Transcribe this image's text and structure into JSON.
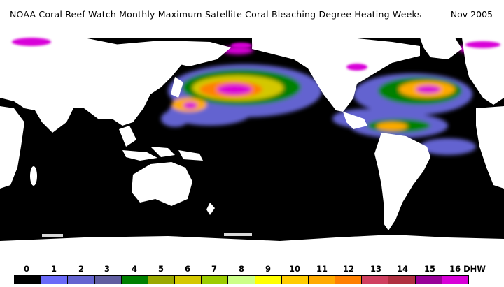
{
  "header": {
    "title": "NOAA  Coral  Reef  Watch  Monthly  Maximum  Satellite  Coral  Bleaching  Degree  Heating  Weeks",
    "date": "Nov 2005"
  },
  "legend": {
    "labels": [
      "0",
      "1",
      "2",
      "3",
      "4",
      "5",
      "6",
      "7",
      "8",
      "9",
      "10",
      "11",
      "12",
      "13",
      "14",
      "15",
      "16 DHW"
    ],
    "colors": [
      "#000000",
      "#6a6af8",
      "#6464d0",
      "#605ea0",
      "#008000",
      "#9aa800",
      "#d4c800",
      "#9ccc00",
      "#ccff88",
      "#ffff00",
      "#ffcc00",
      "#ffaa00",
      "#ff8000",
      "#d04060",
      "#b03040",
      "#980098",
      "#d800d8"
    ]
  },
  "colors": {
    "ocean": "#000000",
    "land": "#ffffff",
    "sea_ice": "#d8d8d8"
  }
}
